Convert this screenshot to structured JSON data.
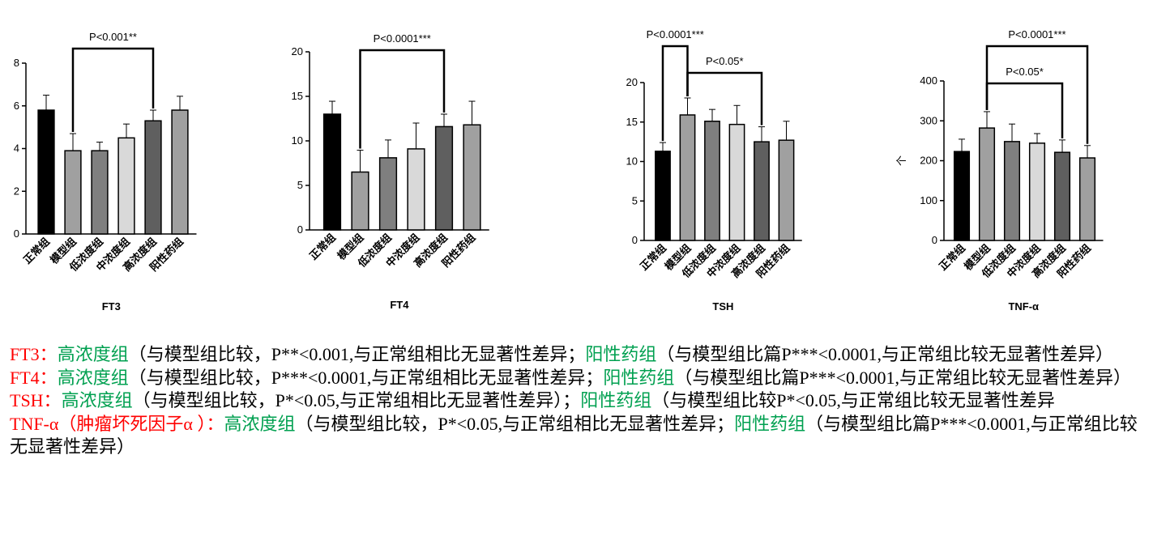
{
  "chart_data": [
    {
      "type": "bar",
      "title": "FT3",
      "categories": [
        "正常组",
        "模型组",
        "低浓度组",
        "中浓度组",
        "高浓度组",
        "阳性药组"
      ],
      "values": [
        5.8,
        3.9,
        3.9,
        4.5,
        5.3,
        5.8
      ],
      "errors": [
        0.7,
        0.8,
        0.4,
        0.65,
        0.5,
        0.65
      ],
      "colors": [
        "#000000",
        "#a0a0a0",
        "#7f7f7f",
        "#d9d9d9",
        "#5f5f5f",
        "#a0a0a0"
      ],
      "ylim": [
        0,
        8
      ],
      "yticks": [
        0,
        2,
        4,
        6,
        8
      ],
      "annotations": [
        {
          "text": "P<0.001**",
          "between": [
            1,
            4
          ]
        }
      ]
    },
    {
      "type": "bar",
      "title": "FT4",
      "categories": [
        "正常组",
        "模型组",
        "低浓度组",
        "中浓度组",
        "高浓度组",
        "阳性药组"
      ],
      "values": [
        13.0,
        6.5,
        8.1,
        9.1,
        11.6,
        11.8
      ],
      "errors": [
        1.45,
        2.45,
        2.0,
        2.9,
        1.4,
        2.65
      ],
      "colors": [
        "#000000",
        "#a0a0a0",
        "#7f7f7f",
        "#d9d9d9",
        "#5f5f5f",
        "#a0a0a0"
      ],
      "ylim": [
        0,
        20
      ],
      "yticks": [
        0,
        5,
        10,
        15,
        20
      ],
      "annotations": [
        {
          "text": "P<0.0001***",
          "between": [
            1,
            4
          ]
        }
      ]
    },
    {
      "type": "bar",
      "title": "TSH",
      "categories": [
        "正常组",
        "模型组",
        "低浓度组",
        "中浓度组",
        "高浓度组",
        "阳性药组"
      ],
      "values": [
        11.3,
        15.9,
        15.1,
        14.7,
        12.5,
        12.7
      ],
      "errors": [
        1.1,
        2.15,
        1.5,
        2.4,
        1.9,
        2.4
      ],
      "colors": [
        "#000000",
        "#a0a0a0",
        "#7f7f7f",
        "#d9d9d9",
        "#5f5f5f",
        "#a0a0a0"
      ],
      "ylim": [
        0,
        20
      ],
      "yticks": [
        0,
        5,
        10,
        15,
        20
      ],
      "annotations": [
        {
          "text": "P<0.0001***",
          "between": [
            0,
            1
          ]
        },
        {
          "text": "P<0.05*",
          "between": [
            1,
            4
          ]
        }
      ]
    },
    {
      "type": "bar",
      "title": "TNF-α",
      "y_label": "个",
      "categories": [
        "正常组",
        "模型组",
        "低浓度组",
        "中浓度组",
        "高浓度组",
        "阳性药组"
      ],
      "values": [
        223,
        282,
        248,
        244,
        221,
        207
      ],
      "errors": [
        31,
        41,
        44,
        24,
        31,
        31
      ],
      "colors": [
        "#000000",
        "#a0a0a0",
        "#7f7f7f",
        "#d9d9d9",
        "#5f5f5f",
        "#a0a0a0"
      ],
      "ylim": [
        0,
        400
      ],
      "yticks": [
        0,
        100,
        200,
        300,
        400
      ],
      "annotations": [
        {
          "text": "P<0.0001***",
          "between": [
            1,
            5
          ]
        },
        {
          "text": "P<0.05*",
          "between": [
            1,
            4
          ]
        }
      ]
    }
  ],
  "notes": [
    [
      {
        "text": "FT3：",
        "color": "#ff0000"
      },
      {
        "text": "高浓度组",
        "color": "#00a050"
      },
      {
        "text": "（与模型组比较，P**<0.001,与正常组相比无显著性差异；",
        "color": "#000000"
      },
      {
        "text": "阳性药组",
        "color": "#00a050"
      },
      {
        "text": "（与模型组比篇P***<0.0001,与正常组比较无显著性差异）",
        "color": "#000000"
      }
    ],
    [
      {
        "text": "FT4：",
        "color": "#ff0000"
      },
      {
        "text": "高浓度组",
        "color": "#00a050"
      },
      {
        "text": "（与模型组比较，P***<0.0001,与正常组相比无显著性差异；",
        "color": "#000000"
      },
      {
        "text": "阳性药组",
        "color": "#00a050"
      },
      {
        "text": "（与模型组比篇P***<0.0001,与正常组比较无显著性差异）",
        "color": "#000000"
      }
    ],
    [
      {
        "text": "TSH：",
        "color": "#ff0000"
      },
      {
        "text": "高浓度组",
        "color": "#00a050"
      },
      {
        "text": "（与模型组比较，P*<0.05,与正常组相比无显著性差异）；",
        "color": "#000000"
      },
      {
        "text": "阳性药组",
        "color": "#00a050"
      },
      {
        "text": "（与模型组比较P*<0.05,与正常组比较无显著性差异",
        "color": "#000000"
      }
    ],
    [
      {
        "text": "TNF-α（肿瘤坏死因子α ）：",
        "color": "#ff0000"
      },
      {
        "text": "高浓度组",
        "color": "#00a050"
      },
      {
        "text": "（与模型组比较，P*<0.05,与正常组相比无显著性差异；",
        "color": "#000000"
      },
      {
        "text": "阳性药组",
        "color": "#00a050"
      },
      {
        "text": "（与模型组比篇P***<0.0001,与正常组比较无显著性差异）",
        "color": "#000000"
      }
    ]
  ]
}
